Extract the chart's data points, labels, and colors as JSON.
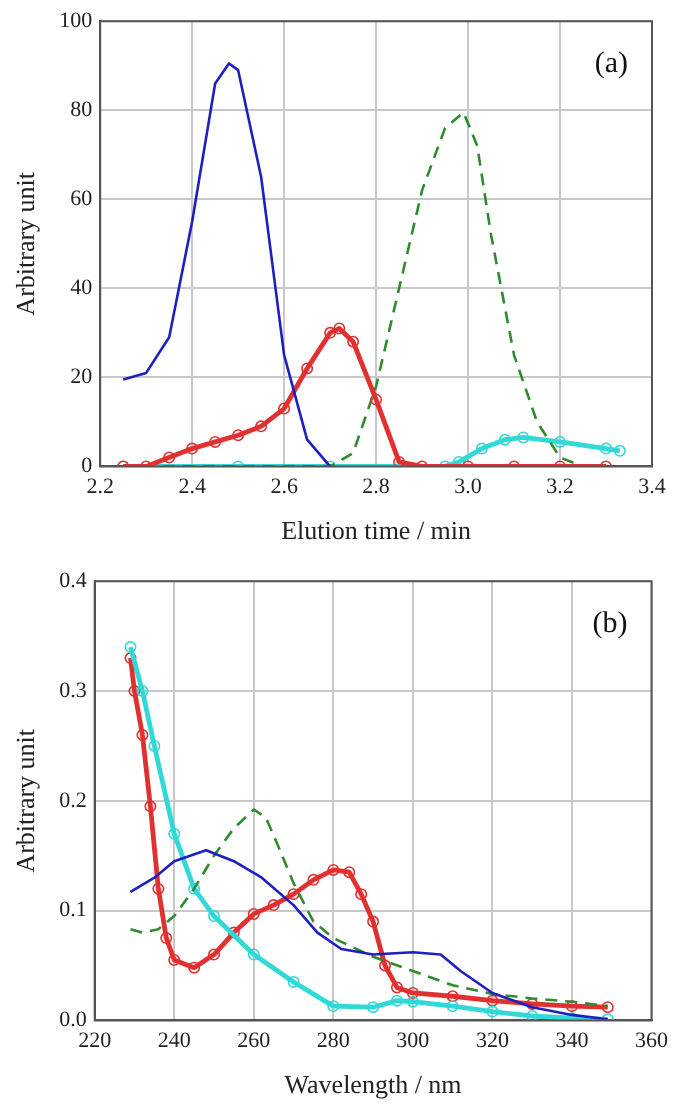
{
  "chart_data": [
    {
      "type": "line",
      "xlabel": "Elution time / min",
      "ylabel": "Arbitrary unit",
      "annotations": [
        "(a)"
      ],
      "xlim": [
        2.2,
        3.4
      ],
      "xticks": [
        2.2,
        2.4,
        2.6,
        2.8,
        {
          "value": 3,
          "label": "3.0"
        },
        3.2,
        3.4
      ],
      "ylim": [
        0,
        100
      ],
      "yticks": [
        0,
        20,
        40,
        60,
        80,
        100
      ],
      "grid": true,
      "legend": false,
      "series": [
        {
          "color": "#1f1fbf",
          "marker": "none",
          "line_style": "solid",
          "x": [
            2.25,
            2.3,
            2.35,
            2.4,
            2.45,
            2.48,
            2.5,
            2.55,
            2.6,
            2.65,
            2.7
          ],
          "values": [
            19.5,
            21,
            29,
            55,
            86,
            90.5,
            89,
            65,
            25,
            6,
            0
          ]
        },
        {
          "color": "#e03030",
          "marker": "circle",
          "line_style": "solid",
          "x": [
            2.25,
            2.3,
            2.35,
            2.4,
            2.45,
            2.5,
            2.55,
            2.6,
            2.65,
            2.7,
            2.72,
            2.75,
            2.8,
            2.85,
            2.9,
            3.0,
            3.1,
            3.2,
            3.3
          ],
          "values": [
            0,
            0,
            2,
            4,
            5.5,
            7,
            9,
            13,
            22,
            30,
            31,
            28,
            15,
            1,
            0,
            0,
            0,
            0,
            0
          ]
        },
        {
          "color": "#2e8b2e",
          "marker": "none",
          "line_style": "dashed",
          "x": [
            2.25,
            2.5,
            2.7,
            2.75,
            2.8,
            2.85,
            2.9,
            2.95,
            2.99,
            3.02,
            3.05,
            3.1,
            3.15,
            3.2,
            3.25
          ],
          "values": [
            0,
            0,
            0,
            3,
            18,
            40,
            62,
            76,
            79.5,
            72,
            52,
            25,
            10,
            2,
            0
          ]
        },
        {
          "color": "#30d8d8",
          "marker": "circle",
          "line_style": "solid",
          "x": [
            2.25,
            2.5,
            2.7,
            2.95,
            2.98,
            3.03,
            3.08,
            3.12,
            3.2,
            3.3,
            3.33
          ],
          "values": [
            0,
            0,
            0,
            0,
            1,
            4,
            6,
            6.5,
            5.5,
            4,
            3.5
          ]
        }
      ]
    },
    {
      "type": "line",
      "xlabel": "Wavelength / nm",
      "ylabel": "Arbitrary unit",
      "annotations": [
        "(b)"
      ],
      "xlim": [
        220,
        360
      ],
      "xticks": [
        220,
        240,
        260,
        280,
        300,
        320,
        340,
        360
      ],
      "ylim": [
        0,
        0.4
      ],
      "yticks": [
        {
          "value": 0,
          "label": "0.0"
        },
        0.1,
        0.2,
        0.3,
        0.4
      ],
      "grid": true,
      "legend": false,
      "series": [
        {
          "color": "#1f1fbf",
          "marker": "none",
          "line_style": "solid",
          "x": [
            229,
            235,
            240,
            248,
            255,
            262,
            270,
            276,
            282,
            290,
            300,
            307,
            312,
            320,
            330,
            340,
            349
          ],
          "values": [
            0.117,
            0.13,
            0.145,
            0.155,
            0.145,
            0.13,
            0.105,
            0.08,
            0.065,
            0.06,
            0.062,
            0.06,
            0.045,
            0.025,
            0.012,
            0.005,
            0.001
          ]
        },
        {
          "color": "#2e8b2e",
          "marker": "none",
          "line_style": "dashed",
          "x": [
            229,
            232,
            236,
            240,
            245,
            250,
            255,
            260,
            263,
            266,
            270,
            275,
            280,
            290,
            300,
            310,
            320,
            330,
            340,
            349
          ],
          "values": [
            0.083,
            0.08,
            0.083,
            0.095,
            0.12,
            0.15,
            0.175,
            0.192,
            0.185,
            0.16,
            0.125,
            0.09,
            0.075,
            0.058,
            0.045,
            0.032,
            0.024,
            0.02,
            0.017,
            0.013
          ]
        },
        {
          "color": "#30d8d8",
          "marker": "circle",
          "line_style": "solid",
          "x": [
            229,
            232,
            235,
            240,
            245,
            250,
            260,
            270,
            280,
            290,
            296,
            300,
            310,
            320,
            330,
            340,
            349
          ],
          "values": [
            0.34,
            0.3,
            0.25,
            0.17,
            0.12,
            0.095,
            0.06,
            0.035,
            0.013,
            0.012,
            0.018,
            0.017,
            0.013,
            0.008,
            0.004,
            0.002,
            0.001
          ]
        },
        {
          "color": "#e03030",
          "marker": "circle",
          "line_style": "solid",
          "x": [
            229,
            230,
            232,
            234,
            236,
            238,
            240,
            245,
            250,
            255,
            260,
            265,
            270,
            275,
            280,
            284,
            287,
            290,
            293,
            296,
            300,
            310,
            320,
            330,
            340,
            349
          ],
          "values": [
            0.33,
            0.3,
            0.26,
            0.195,
            0.12,
            0.075,
            0.055,
            0.048,
            0.06,
            0.08,
            0.097,
            0.105,
            0.115,
            0.128,
            0.137,
            0.135,
            0.115,
            0.09,
            0.05,
            0.03,
            0.025,
            0.022,
            0.018,
            0.015,
            0.013,
            0.012
          ]
        }
      ]
    }
  ]
}
